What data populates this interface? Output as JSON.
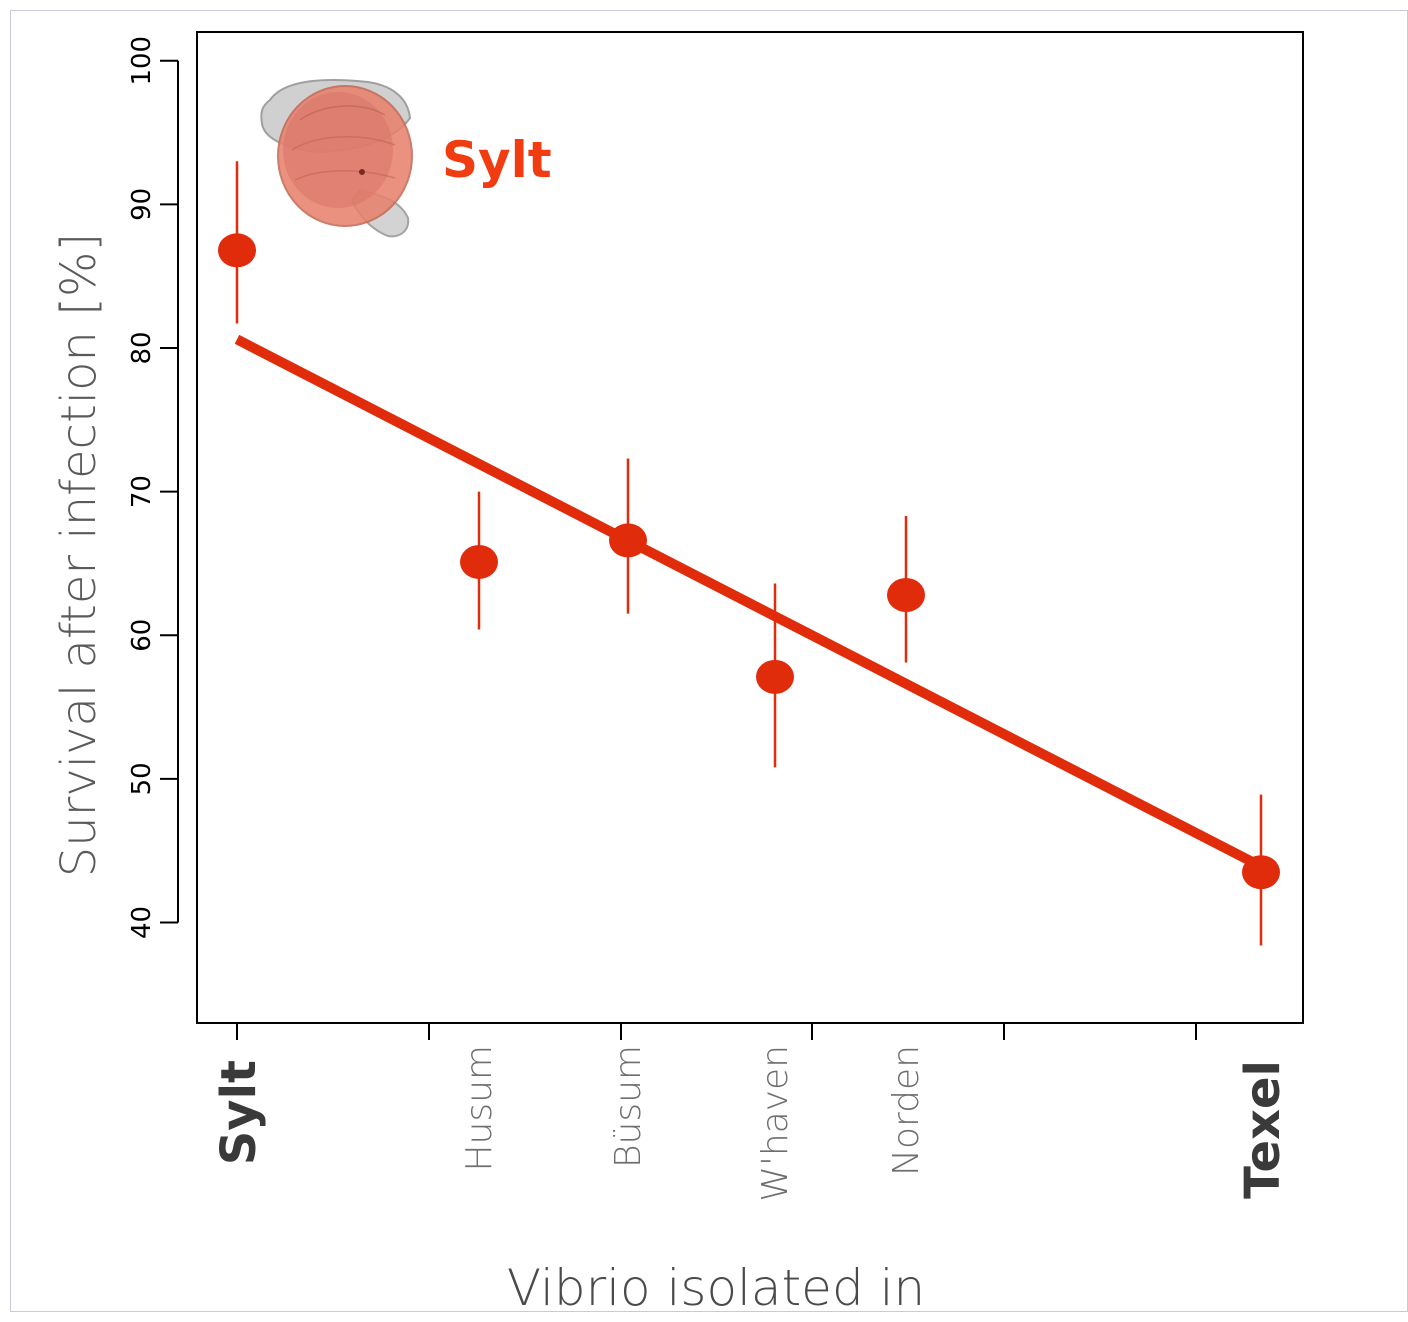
{
  "chart_data": {
    "type": "scatter",
    "title": "",
    "xlabel": "Vibrio isolated in",
    "ylabel": "Survival after infection [%]",
    "ylim": [
      33,
      102
    ],
    "yticks": [
      40,
      50,
      60,
      70,
      80,
      90,
      100
    ],
    "grid": false,
    "categories": [
      {
        "label": "Sylt",
        "bold": true
      },
      {
        "label": "Husum",
        "bold": false
      },
      {
        "label": "Büsum",
        "bold": false
      },
      {
        "label": "W'haven",
        "bold": false
      },
      {
        "label": "Norden",
        "bold": false
      },
      {
        "label": "Texel",
        "bold": true
      }
    ],
    "points": [
      {
        "x": "Sylt",
        "y": 86.8,
        "lower": 81.7,
        "upper": 93.0
      },
      {
        "x": "Husum",
        "y": 65.1,
        "lower": 60.4,
        "upper": 70.0
      },
      {
        "x": "Büsum",
        "y": 66.6,
        "lower": 61.5,
        "upper": 72.3
      },
      {
        "x": "W'haven",
        "y": 57.1,
        "lower": 50.8,
        "upper": 63.6
      },
      {
        "x": "Norden",
        "y": 62.8,
        "lower": 58.1,
        "upper": 68.3
      },
      {
        "x": "Texel",
        "y": 43.5,
        "lower": 38.4,
        "upper": 48.9
      }
    ],
    "trend_line": {
      "y_start": 80.6,
      "y_end": 43.9
    },
    "annotation": "Sylt",
    "colors": {
      "series": "#e02c0a",
      "annotation": "#f03c10",
      "axis": "#000000"
    }
  }
}
